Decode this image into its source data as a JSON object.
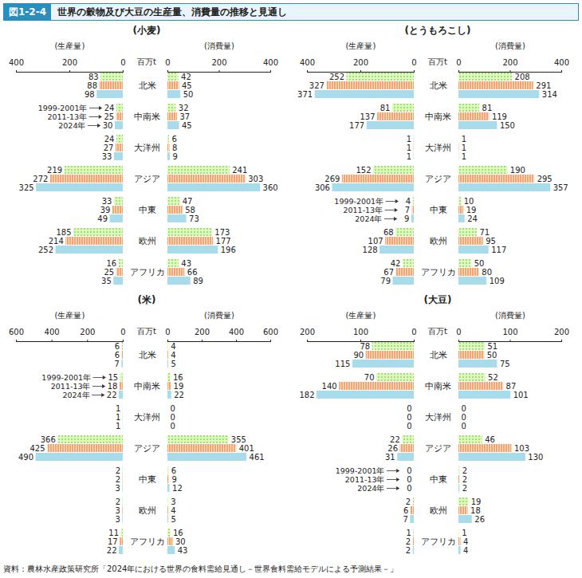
{
  "figure": "図1-2-4",
  "title": "世界の穀物及び大豆の生産量、消費量の推移と見通し",
  "source": "資料：農林水産政策研究所「2024年における世界の食料需給見通し－世界食料需給モデルによる予測結果－」",
  "chart_data": [
    {
      "type": "bar",
      "orientation": "horizontal",
      "title": "(小麦)",
      "unit": "百万t",
      "data_labels": true,
      "categories": [
        "北米",
        "中南米",
        "大洋州",
        "アジア",
        "中東",
        "欧州",
        "アフリカ"
      ],
      "production": {
        "label": "(生産量)",
        "xlim": [
          400,
          0
        ],
        "xticks": [
          400,
          200,
          0
        ],
        "series": [
          {
            "name": "1999-2001年",
            "color": "#a9d58c",
            "values": [
              83,
              24,
              24,
              219,
              33,
              185,
              16
            ]
          },
          {
            "name": "2011-13年",
            "color": "#f4a46c",
            "values": [
              88,
              25,
              27,
              272,
              39,
              214,
              25
            ]
          },
          {
            "name": "2024年",
            "color": "#a8dcea",
            "values": [
              98,
              30,
              33,
              325,
              49,
              252,
              35
            ]
          }
        ]
      },
      "consumption": {
        "label": "(消費量)",
        "xlim": [
          0,
          400
        ],
        "xticks": [
          0,
          200,
          400
        ],
        "series": [
          {
            "name": "1999-2001年",
            "color": "#a9d58c",
            "values": [
              42,
              32,
              6,
              241,
              47,
              173,
              43
            ]
          },
          {
            "name": "2011-13年",
            "color": "#f4a46c",
            "values": [
              45,
              37,
              8,
              303,
              58,
              177,
              66
            ]
          },
          {
            "name": "2024年",
            "color": "#a8dcea",
            "values": [
              50,
              45,
              9,
              360,
              73,
              196,
              89
            ]
          }
        ]
      }
    },
    {
      "type": "bar",
      "orientation": "horizontal",
      "title": "(とうもろこし)",
      "unit": "百万t",
      "data_labels": true,
      "categories": [
        "北米",
        "中南米",
        "大洋州",
        "アジア",
        "中東",
        "欧州",
        "アフリカ"
      ],
      "production": {
        "label": "(生産量)",
        "xlim": [
          400,
          0
        ],
        "xticks": [
          400,
          200,
          0
        ],
        "series": [
          {
            "name": "1999-2001年",
            "color": "#a9d58c",
            "values": [
              252,
              81,
              1,
              152,
              4,
              68,
              42
            ]
          },
          {
            "name": "2011-13年",
            "color": "#f4a46c",
            "values": [
              327,
              137,
              1,
              269,
              7,
              107,
              67
            ]
          },
          {
            "name": "2024年",
            "color": "#a8dcea",
            "values": [
              371,
              177,
              1,
              306,
              9,
              128,
              79
            ]
          }
        ]
      },
      "consumption": {
        "label": "(消費量)",
        "xlim": [
          0,
          400
        ],
        "xticks": [
          0,
          200,
          400
        ],
        "series": [
          {
            "name": "1999-2001年",
            "color": "#a9d58c",
            "values": [
              208,
              81,
              1,
              190,
              10,
              71,
              50
            ]
          },
          {
            "name": "2011-13年",
            "color": "#f4a46c",
            "values": [
              291,
              119,
              1,
              295,
              19,
              95,
              80
            ]
          },
          {
            "name": "2024年",
            "color": "#a8dcea",
            "values": [
              314,
              150,
              1,
              357,
              24,
              117,
              109
            ]
          }
        ]
      }
    },
    {
      "type": "bar",
      "orientation": "horizontal",
      "title": "(米)",
      "unit": "百万t",
      "data_labels": true,
      "categories": [
        "北米",
        "中南米",
        "大洋州",
        "アジア",
        "中東",
        "欧州",
        "アフリカ"
      ],
      "production": {
        "label": "(生産量)",
        "xlim": [
          600,
          0
        ],
        "xticks": [
          600,
          400,
          200,
          0
        ],
        "series": [
          {
            "name": "1999-2001年",
            "color": "#a9d58c",
            "values": [
              6,
              15,
              1,
              366,
              2,
              2,
              11
            ]
          },
          {
            "name": "2011-13年",
            "color": "#f4a46c",
            "values": [
              6,
              18,
              1,
              425,
              2,
              3,
              17
            ]
          },
          {
            "name": "2024年",
            "color": "#a8dcea",
            "values": [
              7,
              22,
              1,
              490,
              3,
              3,
              22
            ]
          }
        ]
      },
      "consumption": {
        "label": "(消費量)",
        "xlim": [
          0,
          600
        ],
        "xticks": [
          0,
          200,
          400,
          600
        ],
        "series": [
          {
            "name": "1999-2001年",
            "color": "#a9d58c",
            "values": [
              4,
              16,
              0,
              355,
              6,
              3,
              16
            ]
          },
          {
            "name": "2011-13年",
            "color": "#f4a46c",
            "values": [
              4,
              19,
              0,
              401,
              9,
              4,
              30
            ]
          },
          {
            "name": "2024年",
            "color": "#a8dcea",
            "values": [
              5,
              22,
              0,
              461,
              12,
              5,
              43
            ]
          }
        ]
      }
    },
    {
      "type": "bar",
      "orientation": "horizontal",
      "title": "(大豆)",
      "unit": "百万t",
      "data_labels": true,
      "categories": [
        "北米",
        "中南米",
        "大洋州",
        "アジア",
        "中東",
        "欧州",
        "アフリカ"
      ],
      "production": {
        "label": "(生産量)",
        "xlim": [
          200,
          0
        ],
        "xticks": [
          200,
          100,
          0
        ],
        "series": [
          {
            "name": "1999-2001年",
            "color": "#a9d58c",
            "values": [
              78,
              70,
              0,
              22,
              0,
              2,
              1
            ]
          },
          {
            "name": "2011-13年",
            "color": "#f4a46c",
            "values": [
              90,
              140,
              0,
              26,
              0,
              6,
              2
            ]
          },
          {
            "name": "2024年",
            "color": "#a8dcea",
            "values": [
              115,
              182,
              0,
              31,
              0,
              7,
              2
            ]
          }
        ]
      },
      "consumption": {
        "label": "(消費量)",
        "xlim": [
          0,
          200
        ],
        "xticks": [
          0,
          100,
          200
        ],
        "series": [
          {
            "name": "1999-2001年",
            "color": "#a9d58c",
            "values": [
              51,
              52,
              0,
              46,
              2,
              19,
              1
            ]
          },
          {
            "name": "2011-13年",
            "color": "#f4a46c",
            "values": [
              50,
              87,
              0,
              103,
              2,
              18,
              4
            ]
          },
          {
            "name": "2024年",
            "color": "#a8dcea",
            "values": [
              75,
              101,
              0,
              130,
              2,
              26,
              4
            ]
          }
        ]
      }
    }
  ]
}
